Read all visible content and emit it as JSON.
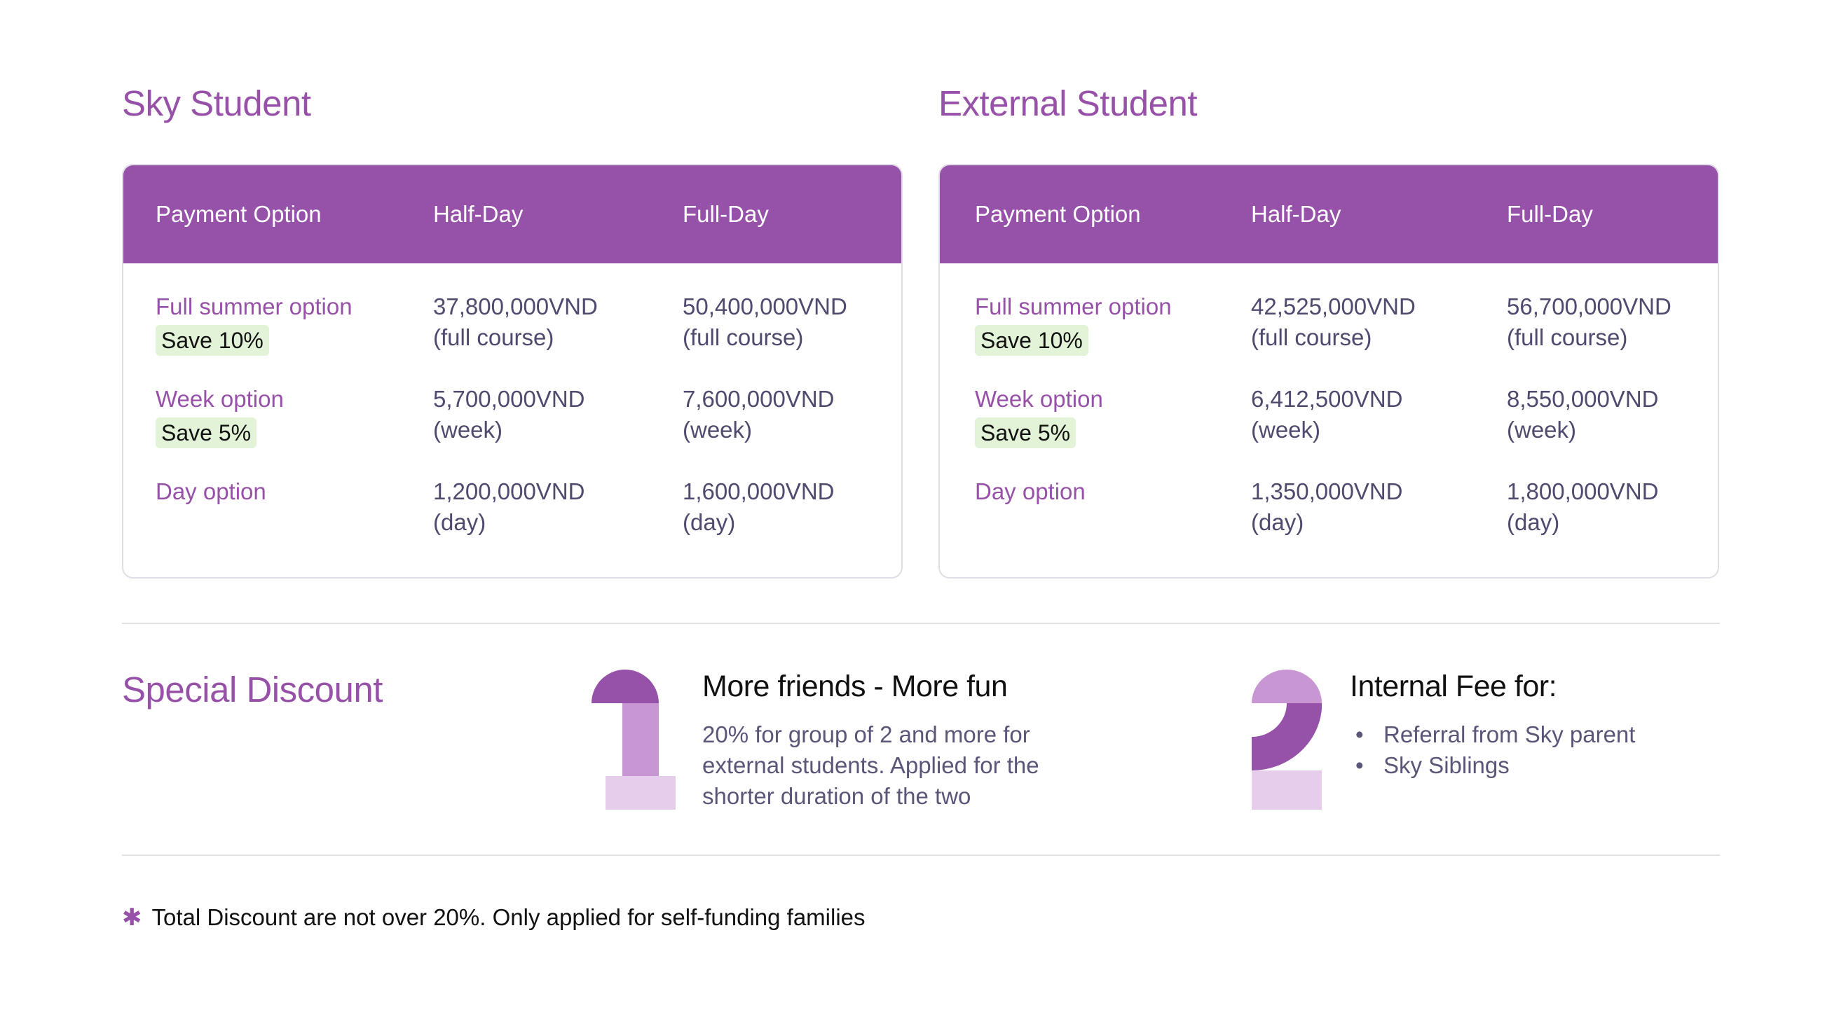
{
  "sky": {
    "title": "Sky Student",
    "headers": [
      "Payment Option",
      "Half-Day",
      "Full-Day"
    ],
    "rows": [
      {
        "option": "Full summer option",
        "badge": "Save 10%",
        "half_price": "37,800,000VND",
        "half_unit": "(full course)",
        "full_price": "50,400,000VND",
        "full_unit": "(full course)"
      },
      {
        "option": "Week option",
        "badge": "Save 5%",
        "half_price": "5,700,000VND",
        "half_unit": "(week)",
        "full_price": "7,600,000VND",
        "full_unit": "(week)"
      },
      {
        "option": "Day option",
        "badge": "",
        "half_price": "1,200,000VND",
        "half_unit": "(day)",
        "full_price": "1,600,000VND",
        "full_unit": "(day)"
      }
    ]
  },
  "external": {
    "title": "External Student",
    "headers": [
      "Payment Option",
      "Half-Day",
      "Full-Day"
    ],
    "rows": [
      {
        "option": "Full summer option",
        "badge": "Save 10%",
        "half_price": "42,525,000VND",
        "half_unit": "(full course)",
        "full_price": "56,700,000VND",
        "full_unit": "(full course)"
      },
      {
        "option": "Week option",
        "badge": "Save 5%",
        "half_price": "6,412,500VND",
        "half_unit": "(week)",
        "full_price": "8,550,000VND",
        "full_unit": "(week)"
      },
      {
        "option": "Day option",
        "badge": "",
        "half_price": "1,350,000VND",
        "half_unit": "(day)",
        "full_price": "1,800,000VND",
        "full_unit": "(day)"
      }
    ]
  },
  "discount": {
    "title": "Special Discount",
    "feature1": {
      "title": "More friends - More fun",
      "description": "20% for group of 2 and more for external students. Applied for the shorter duration of the two"
    },
    "feature2": {
      "title": "Internal Fee for:",
      "bullets": [
        "Referral from Sky parent",
        "Sky Siblings"
      ]
    }
  },
  "footnote": {
    "icon": "asterisk-icon",
    "text": "Total Discount are not over 20%. Only applied for self-funding families"
  },
  "colors": {
    "brand_purple": "#9651A8",
    "mid_purple": "#C996D4",
    "light_purple": "#E6CDEC",
    "badge_green": "#E2F3D8"
  }
}
